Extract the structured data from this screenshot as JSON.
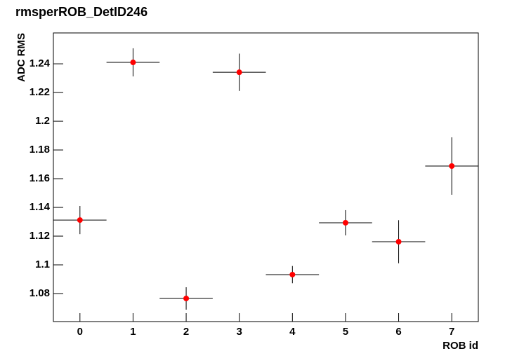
{
  "chart_data": {
    "type": "scatter",
    "title": "rmsperROB_DetID246",
    "x_label": "ROB id",
    "y_label": "ADC RMS",
    "x": [
      0,
      1,
      2,
      3,
      4,
      5,
      6,
      7
    ],
    "values": [
      1.1312,
      1.241,
      1.0766,
      1.2341,
      1.0932,
      1.1293,
      1.1161,
      1.1688
    ],
    "errors": [
      0.0098,
      0.0098,
      0.0078,
      0.013,
      0.006,
      0.0088,
      0.015,
      0.02
    ],
    "x_errors": [
      0.5,
      0.5,
      0.5,
      0.5,
      0.5,
      0.5,
      0.5,
      0.5
    ],
    "color": "#ff0000",
    "xlim": [
      -0.5,
      7.5
    ],
    "xticks": [
      0,
      1,
      2,
      3,
      4,
      5,
      6,
      7
    ],
    "ylim": [
      1.0605,
      1.2615
    ],
    "yticks": [
      1.08,
      1.1,
      1.12,
      1.14,
      1.16,
      1.18,
      1.2,
      1.22,
      1.24
    ]
  }
}
